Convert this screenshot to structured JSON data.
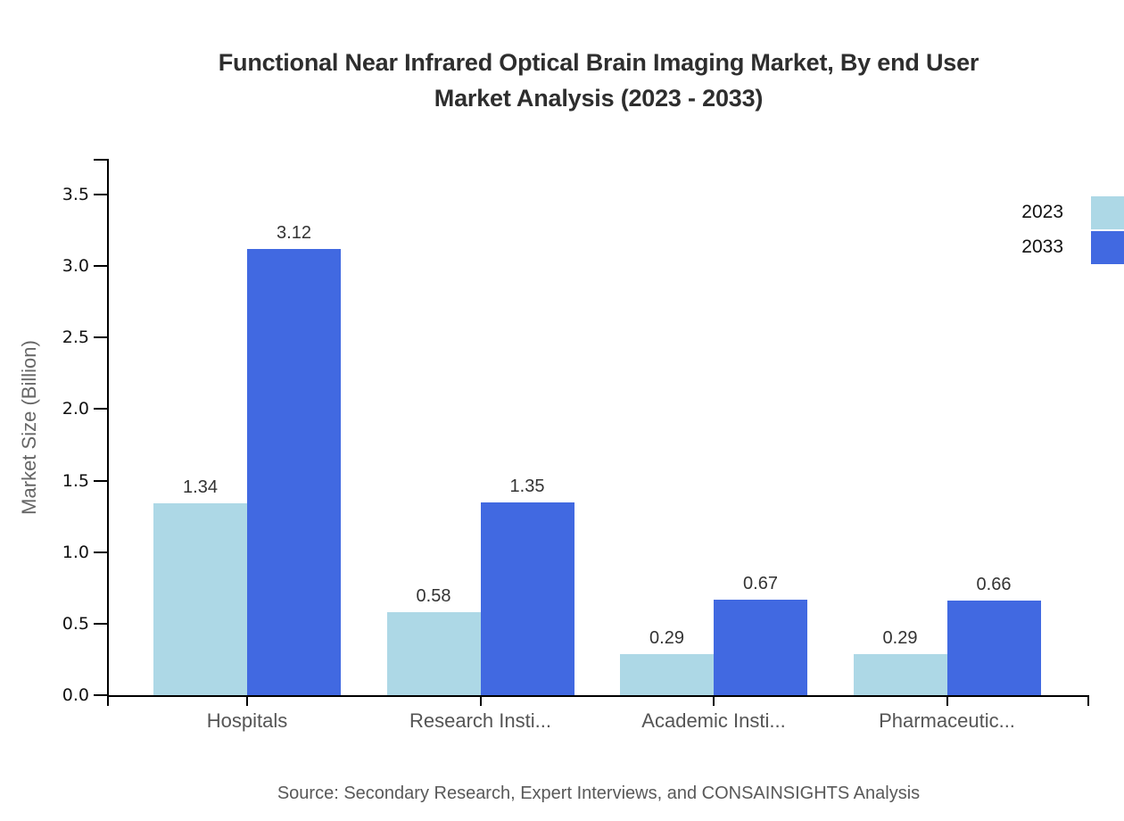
{
  "header": {
    "title_line1": "Functional Near Infrared Optical Brain Imaging Market, By end User",
    "title_line2": "Market Analysis (2023 - 2033)"
  },
  "y_axis": {
    "label": "Market Size (Billion)"
  },
  "footer": {
    "source": "Source: Secondary Research, Expert Interviews, and CONSAINSIGHTS Analysis"
  },
  "chart_data": {
    "type": "bar",
    "title": "Functional Near Infrared Optical Brain Imaging Market, By end User Market Analysis (2023 - 2033)",
    "categories": [
      "Hospitals",
      "Research Insti...",
      "Academic Insti...",
      "Pharmaceutic..."
    ],
    "series": [
      {
        "name": "2023",
        "color": "#ADD8E6",
        "values": [
          1.34,
          0.58,
          0.29,
          0.29
        ]
      },
      {
        "name": "2033",
        "color": "#4169E1",
        "values": [
          3.12,
          1.35,
          0.67,
          0.66
        ]
      }
    ],
    "value_labels": [
      "1.34",
      "3.12",
      "0.58",
      "1.35",
      "0.29",
      "0.67",
      "0.29",
      "0.66"
    ],
    "xlabel": "",
    "ylabel": "Market Size (Billion)",
    "ylim": [
      0,
      3.75
    ],
    "yticks": [
      "0.0",
      "0.5",
      "1.0",
      "1.5",
      "2.0",
      "2.5",
      "3.0",
      "3.5"
    ],
    "grid": false,
    "legend_position": "top-right",
    "source": "Source: Secondary Research, Expert Interviews, and CONSAINSIGHTS Analysis"
  }
}
